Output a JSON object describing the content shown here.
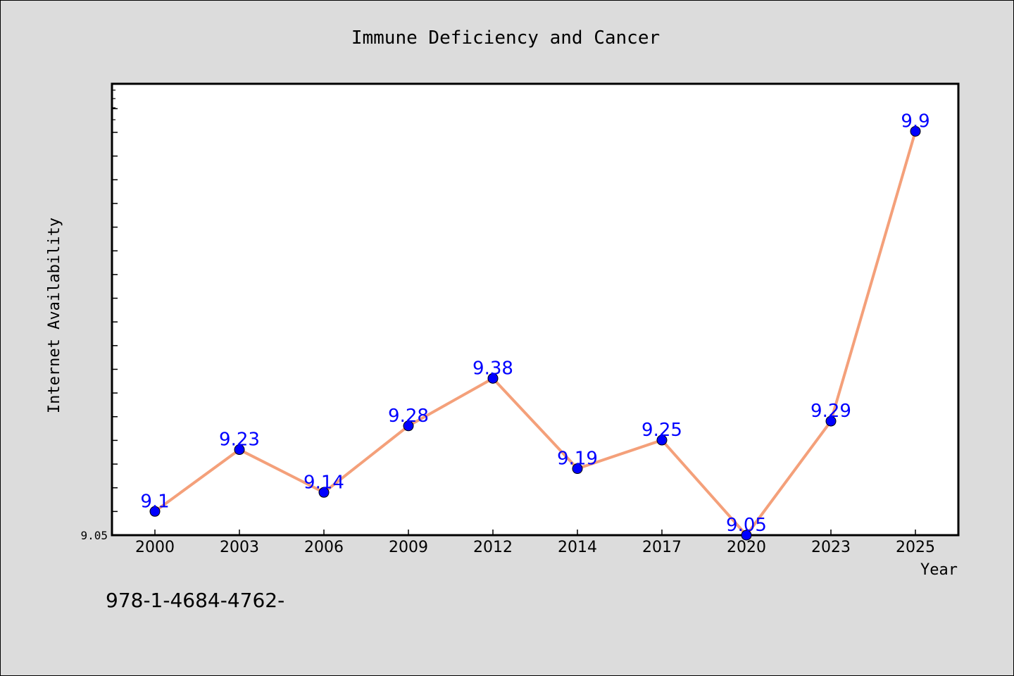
{
  "chart_data": {
    "type": "line",
    "title": "Immune Deficiency and Cancer",
    "xlabel": "Year",
    "ylabel": "Internet Availability",
    "categories": [
      "2000",
      "2003",
      "2006",
      "2009",
      "2012",
      "2014",
      "2017",
      "2020",
      "2023",
      "2025"
    ],
    "series": [
      {
        "values": [
          9.1,
          9.23,
          9.14,
          9.28,
          9.38,
          9.19,
          9.25,
          9.05,
          9.29,
          9.9
        ],
        "data_labels": [
          "9.1",
          "9.23",
          "9.14",
          "9.28",
          "9.38",
          "9.19",
          "9.25",
          "9.05",
          "9.29",
          "9.9"
        ]
      }
    ],
    "yticks": [
      "9.05"
    ],
    "ylim": [
      9.05,
      10.0
    ],
    "grid": false,
    "line_color": "#f4a07a",
    "marker_color": "#0000ff",
    "label_color": "#0000ff"
  },
  "footnote": "978-1-4684-4762-"
}
